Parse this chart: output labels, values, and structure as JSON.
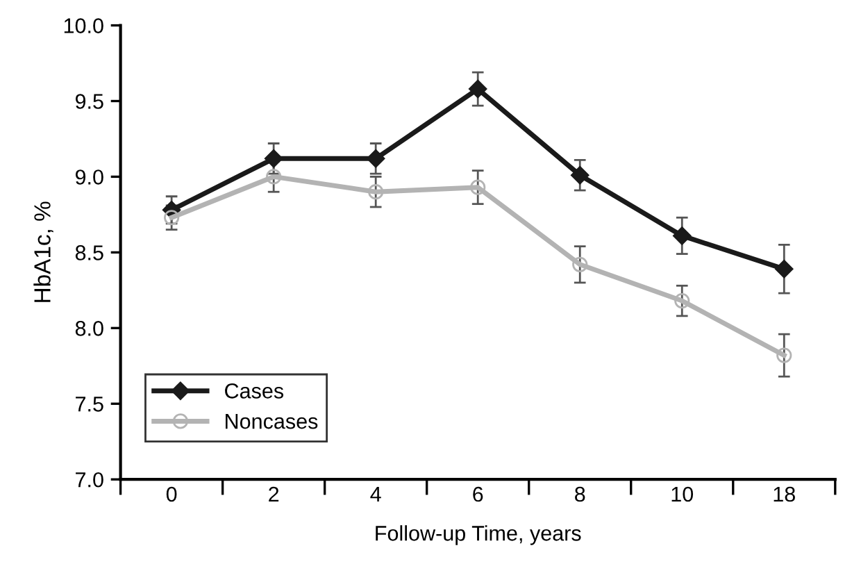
{
  "chart_data": {
    "type": "line",
    "xlabel": "Follow-up Time, years",
    "ylabel": "HbA1c, %",
    "categories": [
      "0",
      "2",
      "4",
      "6",
      "8",
      "10",
      "18"
    ],
    "series": [
      {
        "name": "Cases",
        "color": "#1a1a1a",
        "marker": "diamond",
        "values": [
          8.78,
          9.12,
          9.12,
          9.58,
          9.01,
          8.61,
          8.39
        ],
        "errors": [
          0.09,
          0.1,
          0.1,
          0.11,
          0.1,
          0.12,
          0.16
        ]
      },
      {
        "name": "Noncases",
        "color": "#b3b3b3",
        "marker": "circle",
        "values": [
          8.73,
          9.0,
          8.9,
          8.93,
          8.42,
          8.18,
          7.82
        ],
        "errors": [
          0.08,
          0.1,
          0.1,
          0.11,
          0.12,
          0.1,
          0.14
        ]
      }
    ],
    "ylim": [
      7.0,
      10.0
    ],
    "yticks": [
      {
        "value": 7.0,
        "label": "7.0"
      },
      {
        "value": 7.5,
        "label": "7.5"
      },
      {
        "value": 8.0,
        "label": "8.0"
      },
      {
        "value": 8.5,
        "label": "8.5"
      },
      {
        "value": 9.0,
        "label": "9.0"
      },
      {
        "value": 9.5,
        "label": "9.5"
      },
      {
        "value": 10.0,
        "label": "10.0"
      }
    ],
    "legend": "bottom left",
    "grid": false,
    "line_style": "solid"
  }
}
